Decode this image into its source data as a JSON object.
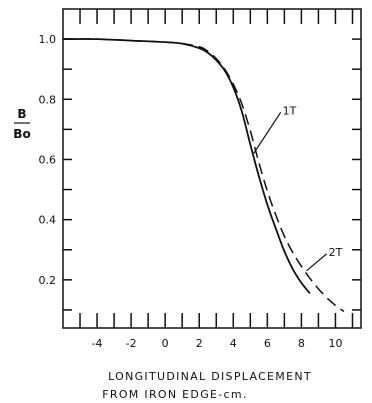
{
  "chart_data": {
    "type": "line",
    "title": "",
    "ylabel_numerator": "B",
    "ylabel_denominator": "Bo",
    "xlabel_line1": "LONGITUDINAL DISPLACEMENT",
    "xlabel_line2": "FROM IRON EDGE-cm.",
    "xlim": [
      -6,
      11.5
    ],
    "ylim": [
      0.04,
      1.1
    ],
    "xticks_labeled": [
      -4,
      -2,
      0,
      2,
      4,
      6,
      8,
      10
    ],
    "xtick_labels": [
      "-4",
      "-2",
      "0",
      "2",
      "4",
      "6",
      "8",
      "10"
    ],
    "xticks_minor": [
      -5,
      -4,
      -3,
      -2,
      -1,
      0,
      1,
      2,
      3,
      4,
      5,
      6,
      7,
      8,
      9,
      10,
      11
    ],
    "yticks_labeled": [
      0.2,
      0.4,
      0.6,
      0.8,
      1.0
    ],
    "ytick_labels": [
      "0.2",
      "0.4",
      "0.6",
      "0.8",
      "1.0"
    ],
    "yticks_minor": [
      0.1,
      0.2,
      0.3,
      0.4,
      0.5,
      0.6,
      0.7,
      0.8,
      0.9,
      1.0
    ],
    "grid": false,
    "series": [
      {
        "name": "1T",
        "style": "solid",
        "x": [
          -6,
          -4,
          -2,
          0,
          1,
          2,
          2.5,
          3,
          3.5,
          4,
          4.5,
          5,
          5.5,
          6,
          6.5,
          7,
          7.5,
          8,
          8.5
        ],
        "y": [
          1.0,
          1.0,
          0.995,
          0.99,
          0.985,
          0.97,
          0.955,
          0.93,
          0.895,
          0.84,
          0.76,
          0.65,
          0.545,
          0.45,
          0.37,
          0.295,
          0.235,
          0.19,
          0.155
        ]
      },
      {
        "name": "2T",
        "style": "dashed",
        "x": [
          -6,
          -4,
          -2,
          0,
          1,
          2,
          2.5,
          3,
          3.5,
          4,
          4.5,
          5,
          5.5,
          6,
          6.5,
          7,
          7.5,
          8,
          8.5,
          9,
          9.5,
          10,
          10.5
        ],
        "y": [
          1.0,
          1.0,
          0.995,
          0.99,
          0.985,
          0.975,
          0.96,
          0.935,
          0.9,
          0.85,
          0.785,
          0.695,
          0.59,
          0.495,
          0.415,
          0.345,
          0.29,
          0.245,
          0.205,
          0.17,
          0.14,
          0.115,
          0.095
        ]
      }
    ],
    "annotations": [
      {
        "text": "1T",
        "x": 6.9,
        "y": 0.75,
        "arrow_to": [
          5.2,
          0.62
        ]
      },
      {
        "text": "2T",
        "x": 9.6,
        "y": 0.28,
        "arrow_to": [
          8.3,
          0.23
        ]
      }
    ]
  }
}
